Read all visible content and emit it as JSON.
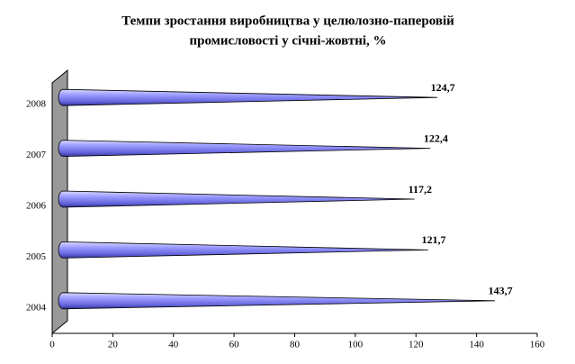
{
  "chart_data": {
    "type": "cone-bar",
    "title": [
      "Темпи зростання виробництва у целюлозно-паперовій",
      "промисловості у січні-жовтні, %"
    ],
    "categories": [
      "2004",
      "2005",
      "2006",
      "2007",
      "2008"
    ],
    "values": [
      143.7,
      121.7,
      117.2,
      122.4,
      124.7
    ],
    "value_labels": [
      "143,7",
      "121,7",
      "117,2",
      "122,4",
      "124,7"
    ],
    "color": "#8080ff",
    "xlim": [
      0,
      160
    ],
    "xticks": [
      0,
      20,
      40,
      60,
      80,
      100,
      120,
      140,
      160
    ]
  }
}
